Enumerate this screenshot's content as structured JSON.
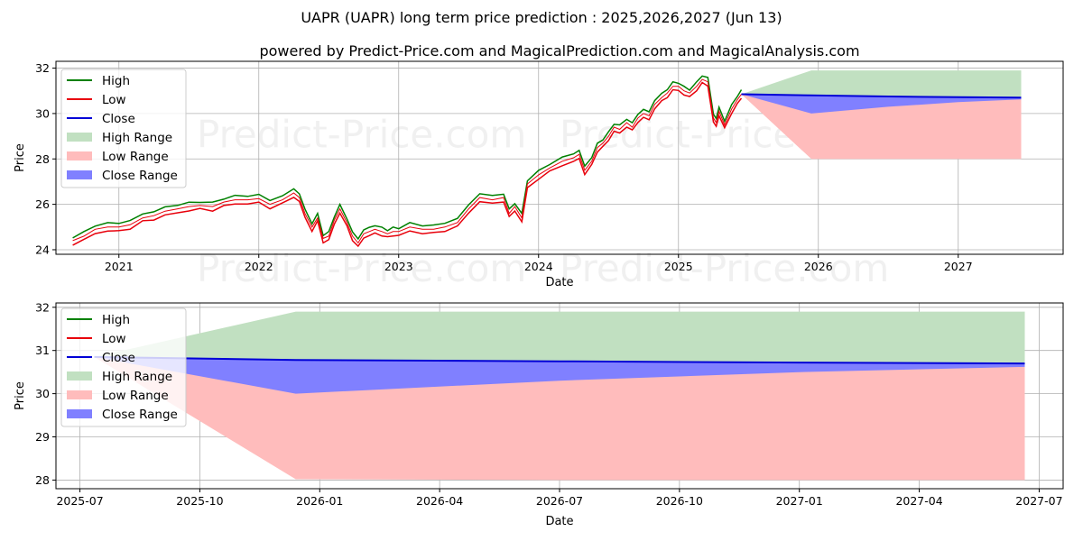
{
  "title": "UAPR (UAPR) long term price prediction : 2025,2026,2027 (Jun 13)",
  "subtitle": "powered by Predict-Price.com and MagicalPrediction.com and MagicalAnalysis.com",
  "watermark": "Predict-Price.com",
  "colors": {
    "high": "#008000",
    "low": "#e8000b",
    "close": "#0000d6",
    "high_range": "#c1e0c1",
    "low_range": "#ffbcbc",
    "close_range": "#8080ff",
    "grid": "#b0b0b0"
  },
  "legend": [
    {
      "key": "high",
      "label": "High",
      "kind": "line"
    },
    {
      "key": "low",
      "label": "Low",
      "kind": "line"
    },
    {
      "key": "close",
      "label": "Close",
      "kind": "line"
    },
    {
      "key": "high_range",
      "label": "High Range",
      "kind": "patch"
    },
    {
      "key": "low_range",
      "label": "Low Range",
      "kind": "patch"
    },
    {
      "key": "close_range",
      "label": "Close Range",
      "kind": "patch"
    }
  ],
  "chart_data": [
    {
      "type": "line",
      "id": "top",
      "xlabel": "Date",
      "ylabel": "Price",
      "xlim": [
        2020.55,
        2027.75
      ],
      "ylim": [
        23.8,
        32.3
      ],
      "xticks": [
        {
          "v": 2021,
          "label": "2021"
        },
        {
          "v": 2022,
          "label": "2022"
        },
        {
          "v": 2023,
          "label": "2023"
        },
        {
          "v": 2024,
          "label": "2024"
        },
        {
          "v": 2025,
          "label": "2025"
        },
        {
          "v": 2026,
          "label": "2026"
        },
        {
          "v": 2027,
          "label": "2027"
        }
      ],
      "yticks": [
        24,
        26,
        28,
        30,
        32
      ],
      "history": {
        "x": [
          2020.67,
          2020.75,
          2020.83,
          2020.92,
          2021.0,
          2021.08,
          2021.17,
          2021.25,
          2021.33,
          2021.42,
          2021.5,
          2021.58,
          2021.67,
          2021.75,
          2021.83,
          2021.92,
          2022.0,
          2022.08,
          2022.17,
          2022.25,
          2022.29,
          2022.33,
          2022.38,
          2022.42,
          2022.46,
          2022.5,
          2022.54,
          2022.58,
          2022.63,
          2022.67,
          2022.71,
          2022.75,
          2022.79,
          2022.83,
          2022.88,
          2022.92,
          2022.96,
          2023.0,
          2023.08,
          2023.17,
          2023.25,
          2023.33,
          2023.42,
          2023.5,
          2023.58,
          2023.67,
          2023.75,
          2023.79,
          2023.83,
          2023.88,
          2023.92,
          2024.0,
          2024.08,
          2024.17,
          2024.25,
          2024.29,
          2024.33,
          2024.38,
          2024.42,
          2024.46,
          2024.5,
          2024.54,
          2024.58,
          2024.63,
          2024.67,
          2024.71,
          2024.75,
          2024.79,
          2024.83,
          2024.88,
          2024.92,
          2024.96,
          2025.0,
          2025.04,
          2025.08,
          2025.13,
          2025.17,
          2025.21,
          2025.25,
          2025.27,
          2025.29,
          2025.33,
          2025.38,
          2025.42,
          2025.45
        ],
        "close": [
          24.4,
          24.6,
          24.9,
          25.0,
          25.0,
          25.1,
          25.4,
          25.5,
          25.7,
          25.8,
          25.9,
          25.95,
          25.9,
          26.1,
          26.2,
          26.2,
          26.25,
          26.0,
          26.2,
          26.5,
          26.3,
          25.6,
          25.0,
          25.4,
          24.5,
          24.6,
          25.3,
          25.8,
          25.2,
          24.6,
          24.3,
          24.7,
          24.8,
          24.9,
          24.8,
          24.7,
          24.8,
          24.8,
          25.0,
          24.9,
          24.9,
          25.0,
          25.2,
          25.8,
          26.3,
          26.2,
          26.3,
          25.6,
          25.9,
          25.4,
          26.9,
          27.3,
          27.6,
          27.9,
          28.05,
          28.2,
          27.5,
          27.9,
          28.5,
          28.7,
          29.0,
          29.4,
          29.3,
          29.6,
          29.4,
          29.8,
          30.0,
          29.9,
          30.4,
          30.7,
          30.9,
          31.2,
          31.2,
          31.0,
          30.9,
          31.2,
          31.5,
          31.4,
          29.8,
          29.6,
          30.1,
          29.5,
          30.2,
          30.6,
          30.85
        ]
      },
      "forecast": {
        "x": [
          2025.45,
          2025.95,
          2026.5,
          2027.0,
          2027.45
        ],
        "close": [
          30.85,
          30.8,
          30.75,
          30.72,
          30.7
        ],
        "high": [
          30.85,
          31.9,
          31.9,
          31.9,
          31.9
        ],
        "low": [
          30.85,
          28.0,
          28.0,
          28.0,
          28.0
        ],
        "close_low": [
          30.85,
          30.0,
          30.3,
          30.5,
          30.62
        ]
      }
    },
    {
      "type": "line",
      "id": "bottom",
      "xlabel": "Date",
      "ylabel": "Price",
      "xlim": [
        2025.45,
        2027.55
      ],
      "ylim": [
        27.8,
        32.1
      ],
      "xticks": [
        {
          "v": 2025.5,
          "label": "2025-07"
        },
        {
          "v": 2025.75,
          "label": "2025-10"
        },
        {
          "v": 2026.0,
          "label": "2026-01"
        },
        {
          "v": 2026.25,
          "label": "2026-04"
        },
        {
          "v": 2026.5,
          "label": "2026-07"
        },
        {
          "v": 2026.75,
          "label": "2026-10"
        },
        {
          "v": 2027.0,
          "label": "2027-01"
        },
        {
          "v": 2027.25,
          "label": "2027-04"
        },
        {
          "v": 2027.5,
          "label": "2027-07"
        }
      ],
      "yticks": [
        28,
        29,
        30,
        31,
        32
      ],
      "forecast": {
        "x": [
          2025.53,
          2025.95,
          2026.5,
          2027.0,
          2027.47
        ],
        "close": [
          30.85,
          30.78,
          30.75,
          30.72,
          30.7
        ],
        "high": [
          30.85,
          31.9,
          31.9,
          31.9,
          31.9
        ],
        "low": [
          30.85,
          28.02,
          28.0,
          28.0,
          28.0
        ],
        "close_low": [
          30.85,
          30.0,
          30.3,
          30.5,
          30.62
        ]
      }
    }
  ]
}
